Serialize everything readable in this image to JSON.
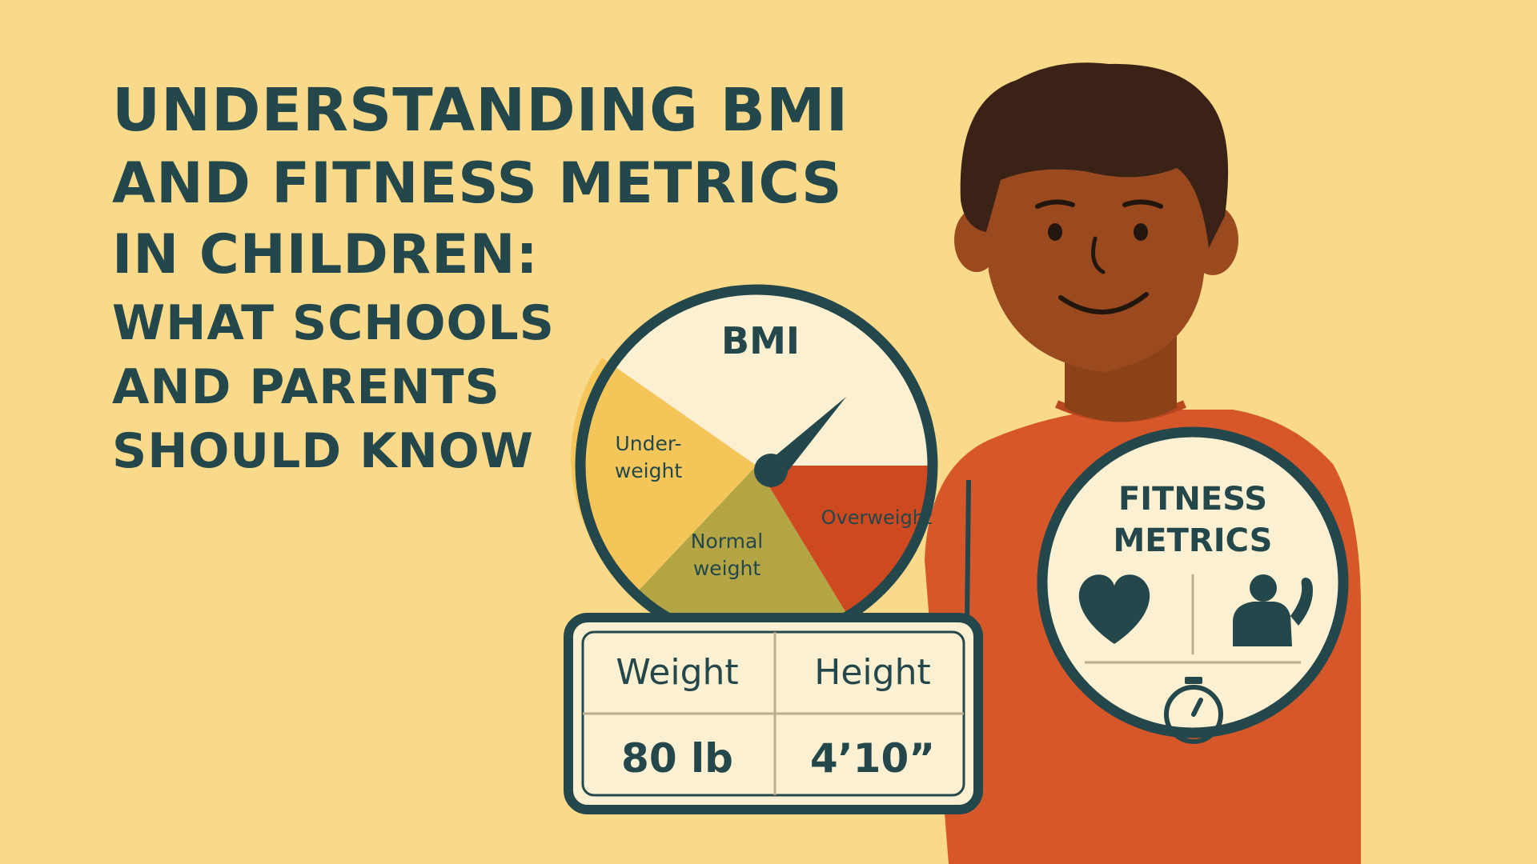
{
  "title": {
    "lines": [
      "UNDERSTANDING BMI",
      "AND FITNESS METRICS",
      "IN CHILDREN:",
      "WHAT SCHOOLS",
      "AND PARENTS",
      "SHOULD KNOW"
    ]
  },
  "bmi_gauge": {
    "label": "BMI",
    "segments": {
      "underweight": [
        "Under-",
        "weight"
      ],
      "normal": [
        "Normal",
        "weight"
      ],
      "overweight": "Overweight"
    }
  },
  "measurements": {
    "weight_label": "Weight",
    "height_label": "Height",
    "weight_value": "80 lb",
    "height_value": "4’10”"
  },
  "fitness": {
    "title_lines": [
      "FITNESS",
      "METRICS"
    ],
    "icons": [
      "heart-icon",
      "strength-icon",
      "stopwatch-icon"
    ]
  },
  "colors": {
    "background": "#f9d98a",
    "ink": "#23474a",
    "underweight": "#f4c65a",
    "normal": "#b3a544",
    "overweight": "#cd4a21",
    "panel": "#fbf0d2",
    "shirt": "#d5572a",
    "skin": "#9a4a1e",
    "hair": "#3a2316"
  }
}
